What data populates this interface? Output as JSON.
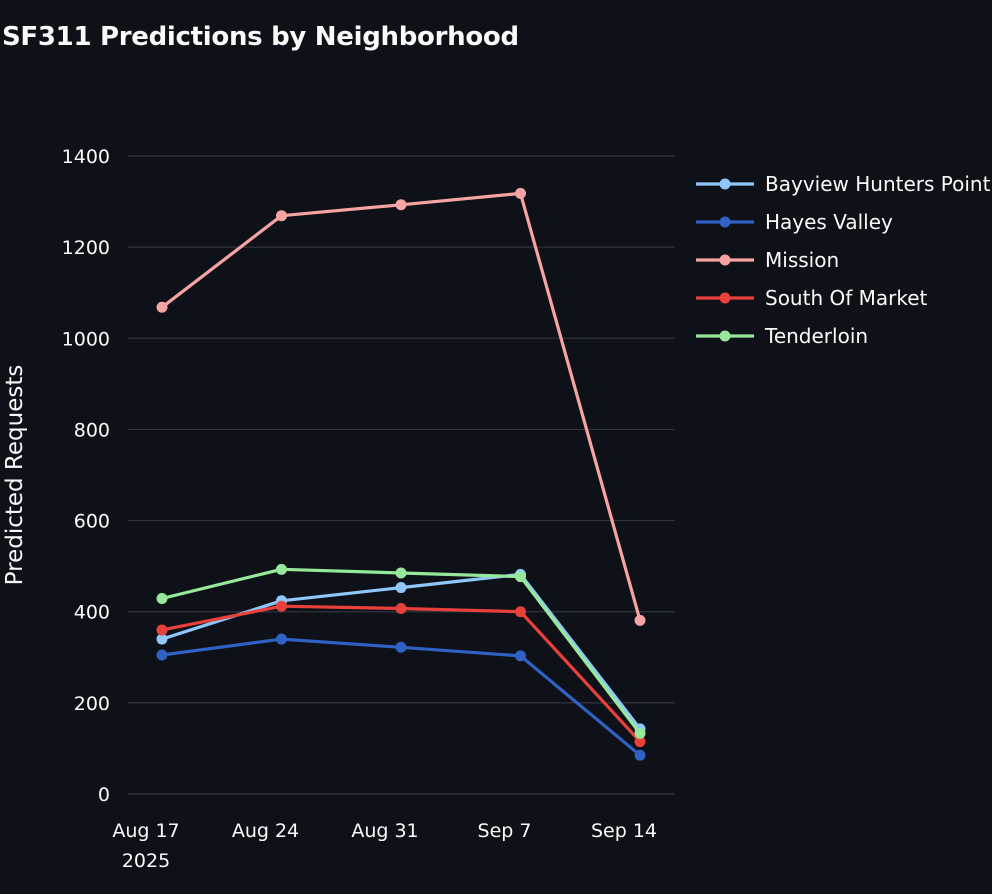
{
  "page": {
    "title": "SF311 Predictions by Neighborhood"
  },
  "chart_data": {
    "type": "line",
    "title": "SF311 Predictions by Neighborhood",
    "xlabel": "",
    "ylabel": "Predicted Requests",
    "x": [
      "2025-08-17",
      "2025-08-24",
      "2025-08-31",
      "2025-09-07",
      "2025-09-14"
    ],
    "x_tick_labels": [
      "Aug 17",
      "Aug 24",
      "Aug 31",
      "Sep 7",
      "Sep 14"
    ],
    "x_tick_year": "2025",
    "ylim": [
      0,
      1400
    ],
    "y_ticks": [
      0,
      200,
      400,
      600,
      800,
      1000,
      1200,
      1400
    ],
    "grid": true,
    "legend_position": "right",
    "series": [
      {
        "name": "Bayview Hunters Point",
        "color": "#8fc7fa",
        "values": [
          340,
          424,
          453,
          482,
          143
        ]
      },
      {
        "name": "Hayes Valley",
        "color": "#2f62c4",
        "values": [
          305,
          340,
          322,
          303,
          85
        ]
      },
      {
        "name": "Mission",
        "color": "#f5a3a3",
        "values": [
          1068,
          1269,
          1293,
          1318,
          381
        ]
      },
      {
        "name": "South Of Market",
        "color": "#e8403a",
        "values": [
          360,
          412,
          407,
          400,
          115
        ]
      },
      {
        "name": "Tenderloin",
        "color": "#96e89a",
        "values": [
          429,
          493,
          485,
          477,
          133
        ]
      }
    ]
  }
}
